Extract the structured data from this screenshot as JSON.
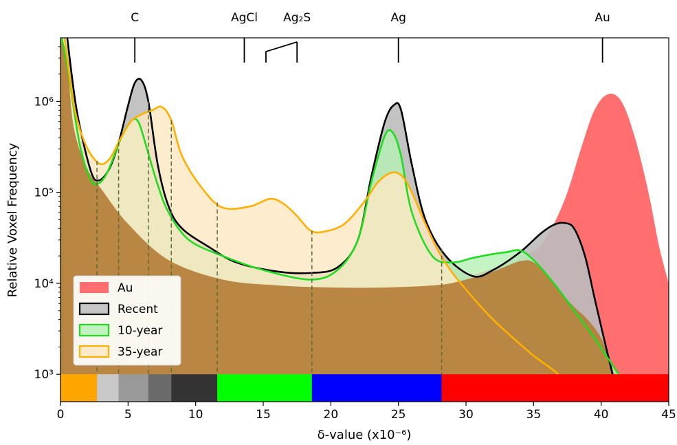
{
  "chart_data": {
    "type": "area",
    "xlabel": "δ-value (x10⁻⁶)",
    "ylabel": "Relative Voxel Frequency",
    "xlim": [
      0,
      45
    ],
    "ylim": [
      500,
      5000000
    ],
    "y_scale": "log",
    "x_ticks": [
      0,
      5,
      10,
      15,
      20,
      25,
      30,
      35,
      40,
      45
    ],
    "y_ticks": [
      {
        "value": 1000,
        "label": "10³"
      },
      {
        "value": 10000,
        "label": "10⁴"
      },
      {
        "value": 100000,
        "label": "10⁵"
      },
      {
        "value": 1000000,
        "label": "10⁶"
      }
    ],
    "legend_position": "lower-left",
    "top_annotations": [
      {
        "label": "C",
        "x": 5.5
      },
      {
        "label": "AgCl",
        "x": 13.6
      },
      {
        "label": "Ag₂S",
        "x": 17.5
      },
      {
        "label": "Ag",
        "x": 25.0
      },
      {
        "label": "Au",
        "x": 40.1
      }
    ],
    "series": [
      {
        "name": "Au",
        "fill": "#ff6f6f",
        "line": "none",
        "x": [
          0.0,
          0.4,
          0.8,
          1.2,
          2.0,
          3.0,
          5.0,
          8.0,
          12.0,
          16.0,
          20.0,
          24.0,
          28.0,
          31.0,
          34.0,
          35.5,
          36.5,
          37.5,
          38.5,
          39.5,
          40.5,
          41.5,
          42.5,
          43.5,
          44.3,
          45.0
        ],
        "y": [
          5000000,
          2000000,
          700000,
          400000,
          180000,
          110000,
          50000,
          20000,
          12000,
          10000,
          9500,
          9300,
          10000,
          13000,
          19000,
          26000,
          45000,
          100000,
          300000,
          800000,
          1200000,
          1000000,
          400000,
          100000,
          25000,
          10000
        ]
      },
      {
        "name": "Recent",
        "fill": "#bdbdbd",
        "line": "#000000",
        "x": [
          0.5,
          1.2,
          2.2,
          2.8,
          3.6,
          4.3,
          5.0,
          5.5,
          6.0,
          6.5,
          7.2,
          8.0,
          9.0,
          11.0,
          13.0,
          16.0,
          18.5,
          20.5,
          22.0,
          23.0,
          24.0,
          24.7,
          25.2,
          26.0,
          27.0,
          28.5,
          30.5,
          32.0,
          34.0,
          35.5,
          36.5,
          37.3,
          38.0,
          38.8,
          39.5,
          40.2,
          41.0
        ],
        "y": [
          5000000,
          800000,
          180000,
          135000,
          180000,
          350000,
          900000,
          1600000,
          1700000,
          1000000,
          200000,
          70000,
          40000,
          25000,
          17000,
          13500,
          13000,
          15000,
          30000,
          150000,
          600000,
          920000,
          800000,
          200000,
          50000,
          20000,
          12000,
          14000,
          22000,
          35000,
          44000,
          46000,
          40000,
          20000,
          7000,
          2500,
          800
        ]
      },
      {
        "name": "10-year",
        "fill": "#b5f0b5",
        "line": "#1fdc1f",
        "x": [
          0.1,
          0.6,
          1.4,
          2.2,
          2.8,
          3.5,
          4.5,
          5.3,
          5.8,
          6.4,
          7.2,
          8.0,
          9.5,
          12.0,
          15.0,
          18.5,
          20.5,
          22.0,
          23.0,
          24.0,
          24.6,
          25.2,
          26.0,
          27.5,
          29.0,
          30.5,
          32.0,
          33.0,
          34.0,
          35.0,
          36.5,
          38.0,
          39.5,
          40.5,
          41.3
        ],
        "y": [
          5000000,
          2000000,
          350000,
          140000,
          125000,
          170000,
          400000,
          620000,
          580000,
          300000,
          120000,
          60000,
          30000,
          20000,
          14000,
          11000,
          14000,
          30000,
          130000,
          420000,
          450000,
          250000,
          60000,
          20000,
          17000,
          19000,
          21000,
          22000,
          23000,
          18000,
          10000,
          5000,
          2500,
          1500,
          1000
        ]
      },
      {
        "name": "35-year",
        "fill": "#fde9c2",
        "line": "#ffb000",
        "x": [
          0.3,
          1.0,
          1.8,
          2.8,
          3.6,
          4.4,
          5.2,
          6.0,
          6.8,
          7.5,
          8.2,
          9.0,
          10.5,
          12.0,
          14.0,
          15.5,
          16.5,
          17.5,
          18.5,
          19.5,
          21.0,
          22.5,
          23.5,
          24.5,
          25.3,
          26.0,
          27.0,
          28.0,
          29.0,
          30.5,
          32.0,
          33.5,
          35.0,
          36.5,
          37.5
        ],
        "y": [
          5000000,
          900000,
          350000,
          210000,
          230000,
          380000,
          600000,
          720000,
          800000,
          870000,
          620000,
          250000,
          110000,
          68000,
          70000,
          85000,
          75000,
          55000,
          38000,
          37000,
          45000,
          80000,
          130000,
          165000,
          150000,
          100000,
          45000,
          22000,
          13000,
          7000,
          4000,
          2500,
          1600,
          1100,
          800
        ]
      }
    ],
    "dashed_dividers_x": [
      2.7,
      4.3,
      6.5,
      8.2,
      11.6,
      18.6,
      28.2
    ],
    "color_bands": [
      {
        "from": 0.0,
        "to": 2.7,
        "color": "#ffa500"
      },
      {
        "from": 2.7,
        "to": 4.3,
        "color": "#c8c8c8"
      },
      {
        "from": 4.3,
        "to": 6.5,
        "color": "#9a9a9a"
      },
      {
        "from": 6.5,
        "to": 8.2,
        "color": "#6a6a6a"
      },
      {
        "from": 8.2,
        "to": 11.6,
        "color": "#333333"
      },
      {
        "from": 11.6,
        "to": 18.6,
        "color": "#00ff00"
      },
      {
        "from": 18.6,
        "to": 28.2,
        "color": "#0000ff"
      },
      {
        "from": 28.2,
        "to": 45.0,
        "color": "#ff0000"
      }
    ],
    "brown_floor": {
      "color": "#b5823c",
      "x": [
        0.0,
        0.5,
        1.0,
        2.0,
        3.0,
        5.0,
        8.0,
        12.0,
        16.0,
        20.0,
        24.0,
        28.0,
        30.0,
        32.0,
        34.0,
        35.0,
        36.0,
        37.0,
        38.0,
        39.0,
        40.0,
        40.8,
        41.0
      ],
      "y": [
        5000000,
        2500000,
        500000,
        180000,
        110000,
        45000,
        18000,
        11000,
        9500,
        9000,
        9000,
        9600,
        11000,
        13500,
        17500,
        17000,
        12000,
        8000,
        5500,
        4000,
        2500,
        1200,
        800
      ]
    }
  }
}
